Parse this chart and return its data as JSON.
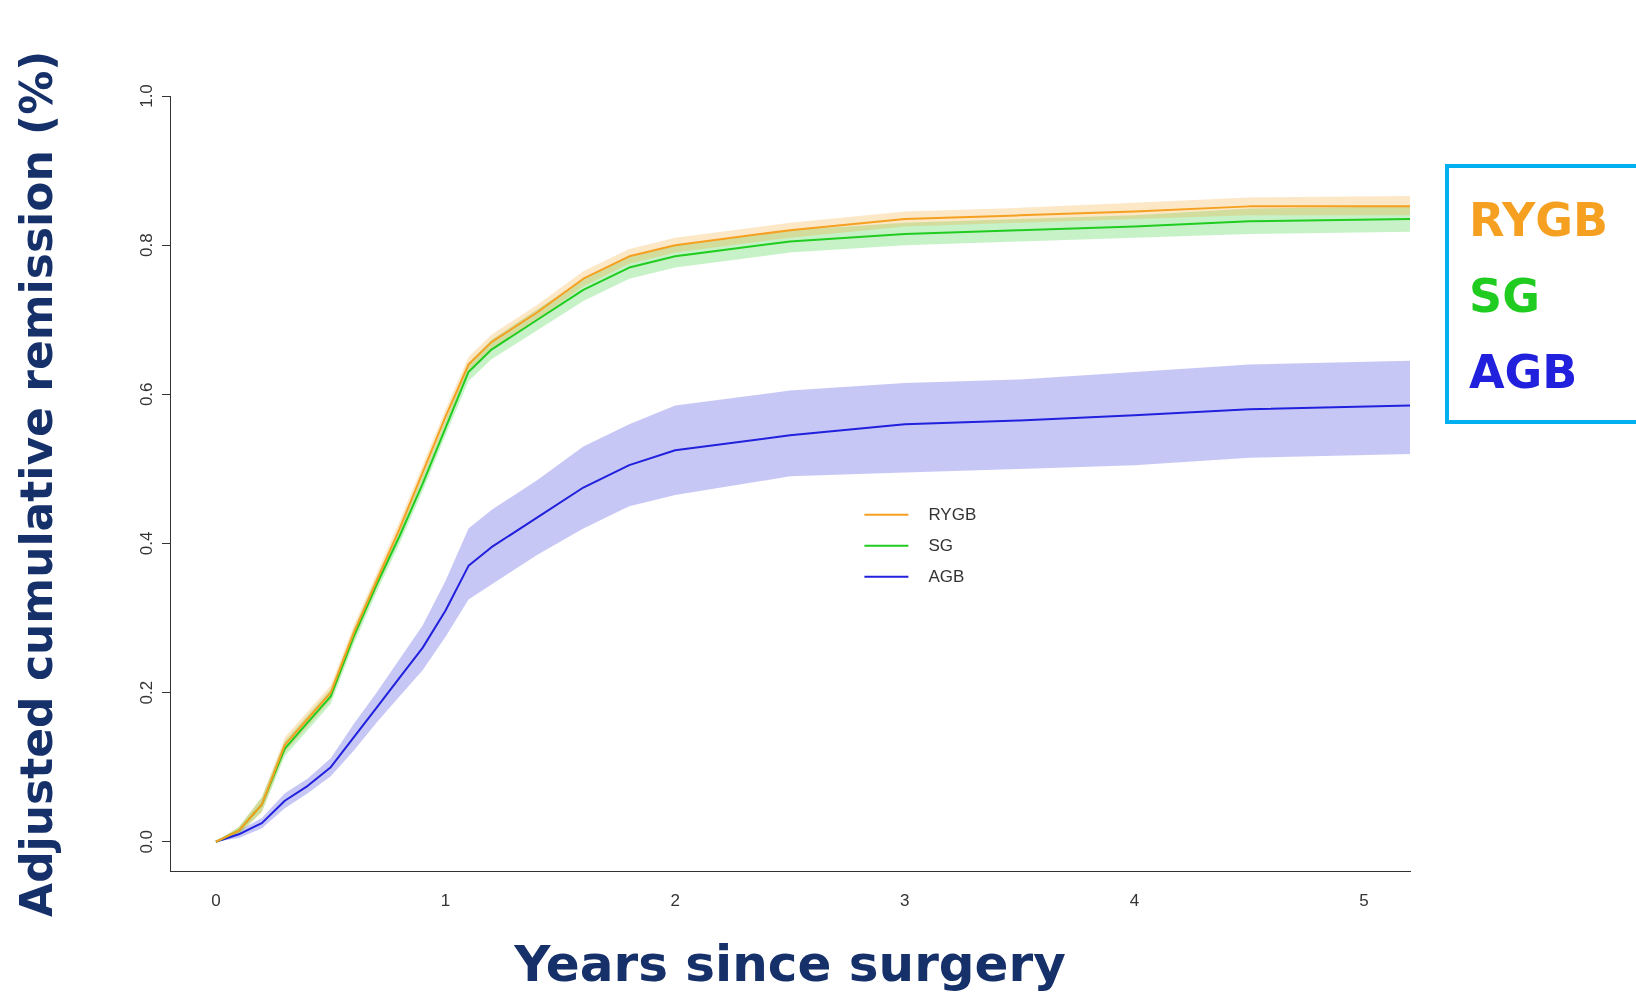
{
  "chart_data": {
    "type": "line",
    "xlabel": "Years since surgery",
    "ylabel": "Adjusted cumulative remission (%)",
    "xlim": [
      -0.2,
      5.2
    ],
    "xticks": [
      0,
      1,
      2,
      3,
      4,
      5
    ],
    "ylim": [
      -0.04,
      1.0
    ],
    "yticks": [
      {
        "value": 0,
        "label": "0.0"
      },
      {
        "value": 0.2,
        "label": "0.2"
      },
      {
        "value": 0.4,
        "label": "0.4"
      },
      {
        "value": 0.6,
        "label": "0.6"
      },
      {
        "value": 0.8,
        "label": "0.8"
      },
      {
        "value": 1,
        "label": "1.0"
      }
    ],
    "legend": "center",
    "grid": false,
    "marker": "none",
    "line_style": "solid",
    "x": [
      0,
      0.1,
      0.2,
      0.3,
      0.4,
      0.5,
      0.6,
      0.7,
      0.8,
      0.9,
      1.0,
      1.1,
      1.2,
      1.4,
      1.6,
      1.8,
      2.0,
      2.5,
      3.0,
      3.5,
      4.0,
      4.5,
      5.2
    ],
    "series": [
      {
        "name": "RYGB",
        "color": "#f5a020",
        "values": [
          0,
          0.015,
          0.05,
          0.13,
          0.165,
          0.2,
          0.28,
          0.35,
          0.42,
          0.495,
          0.57,
          0.64,
          0.67,
          0.71,
          0.755,
          0.785,
          0.8,
          0.82,
          0.835,
          0.84,
          0.845,
          0.852,
          0.852
        ],
        "lower": [
          0,
          0.01,
          0.04,
          0.12,
          0.155,
          0.19,
          0.27,
          0.34,
          0.41,
          0.485,
          0.56,
          0.63,
          0.66,
          0.7,
          0.745,
          0.775,
          0.79,
          0.81,
          0.825,
          0.83,
          0.835,
          0.84,
          0.84
        ],
        "upper": [
          0,
          0.02,
          0.06,
          0.14,
          0.175,
          0.21,
          0.29,
          0.36,
          0.43,
          0.505,
          0.58,
          0.65,
          0.68,
          0.72,
          0.765,
          0.795,
          0.81,
          0.83,
          0.845,
          0.85,
          0.857,
          0.864,
          0.866
        ]
      },
      {
        "name": "SG",
        "color": "#1fcc1f",
        "values": [
          0,
          0.015,
          0.05,
          0.125,
          0.16,
          0.195,
          0.275,
          0.345,
          0.41,
          0.48,
          0.555,
          0.63,
          0.66,
          0.7,
          0.74,
          0.77,
          0.785,
          0.805,
          0.815,
          0.82,
          0.825,
          0.832,
          0.835
        ],
        "lower": [
          0,
          0.01,
          0.04,
          0.115,
          0.15,
          0.185,
          0.265,
          0.335,
          0.4,
          0.47,
          0.545,
          0.618,
          0.647,
          0.686,
          0.725,
          0.755,
          0.77,
          0.79,
          0.8,
          0.805,
          0.81,
          0.815,
          0.818
        ],
        "upper": [
          0,
          0.02,
          0.06,
          0.135,
          0.17,
          0.205,
          0.285,
          0.355,
          0.42,
          0.49,
          0.565,
          0.642,
          0.673,
          0.714,
          0.755,
          0.785,
          0.8,
          0.82,
          0.83,
          0.835,
          0.84,
          0.849,
          0.852
        ]
      },
      {
        "name": "AGB",
        "color": "#2020dd",
        "values": [
          0,
          0.01,
          0.025,
          0.055,
          0.075,
          0.1,
          0.14,
          0.18,
          0.22,
          0.26,
          0.31,
          0.37,
          0.395,
          0.435,
          0.475,
          0.505,
          0.525,
          0.545,
          0.56,
          0.565,
          0.572,
          0.58,
          0.585
        ],
        "lower": [
          0,
          0.005,
          0.018,
          0.045,
          0.065,
          0.088,
          0.122,
          0.16,
          0.195,
          0.23,
          0.275,
          0.325,
          0.345,
          0.385,
          0.42,
          0.45,
          0.465,
          0.49,
          0.495,
          0.5,
          0.505,
          0.515,
          0.52
        ],
        "upper": [
          0,
          0.015,
          0.032,
          0.065,
          0.085,
          0.112,
          0.158,
          0.2,
          0.245,
          0.29,
          0.35,
          0.42,
          0.445,
          0.485,
          0.53,
          0.56,
          0.585,
          0.605,
          0.615,
          0.62,
          0.63,
          0.64,
          0.645
        ]
      }
    ]
  }
}
